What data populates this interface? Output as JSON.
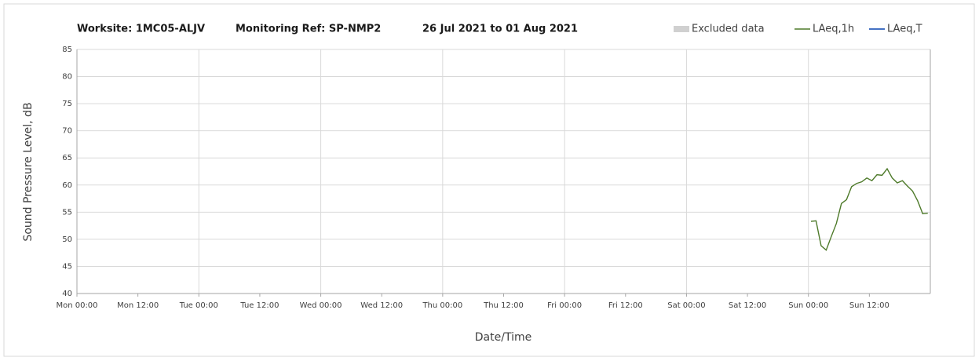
{
  "chart_data": {
    "type": "line",
    "title": [
      "Worksite: 1MC05-ALJV",
      "Monitoring Ref: SP-NMP2",
      "26 Jul 2021 to 01 Aug 2021"
    ],
    "x_label": "Date/Time",
    "y_label": "Sound Pressure Level, dB",
    "x": [
      144.5,
      145.5,
      146.5,
      147.5,
      148.5,
      149.5,
      150.5,
      151.5,
      152.5,
      153.5,
      154.5,
      155.5,
      156.5,
      157.5,
      158.5,
      159.5,
      160.5,
      161.5,
      162.5,
      163.5,
      164.5,
      165.5,
      166.5,
      167.5
    ],
    "series": [
      {
        "name": "Excluded data",
        "color": "#d0d0d0",
        "values": [
          null,
          null,
          null,
          null,
          null,
          null,
          null,
          null,
          null,
          null,
          null,
          null,
          null,
          null,
          null,
          null,
          null,
          null,
          null,
          null,
          null,
          null,
          null,
          null
        ]
      },
      {
        "name": "LAeq,1h",
        "color": "#4e7a2a",
        "values": [
          53.3,
          53.4,
          48.8,
          48.0,
          50.5,
          52.9,
          56.6,
          57.3,
          59.7,
          60.3,
          60.6,
          61.3,
          60.8,
          61.9,
          61.8,
          63.0,
          61.3,
          60.4,
          60.8,
          59.8,
          58.9,
          57.1,
          54.7,
          54.8
        ]
      },
      {
        "name": "LAeq,T",
        "color": "#4472c4",
        "values": [
          null,
          null,
          null,
          null,
          null,
          null,
          null,
          null,
          null,
          null,
          null,
          null,
          null,
          null,
          null,
          null,
          null,
          null,
          null,
          null,
          null,
          null,
          null,
          null
        ]
      }
    ],
    "xlim": [
      0,
      168
    ],
    "xticks": [
      {
        "value": 0,
        "label": "Mon 00:00"
      },
      {
        "value": 12,
        "label": "Mon 12:00"
      },
      {
        "value": 24,
        "label": "Tue 00:00"
      },
      {
        "value": 36,
        "label": "Tue 12:00"
      },
      {
        "value": 48,
        "label": "Wed 00:00"
      },
      {
        "value": 60,
        "label": "Wed 12:00"
      },
      {
        "value": 72,
        "label": "Thu 00:00"
      },
      {
        "value": 84,
        "label": "Thu 12:00"
      },
      {
        "value": 96,
        "label": "Fri 00:00"
      },
      {
        "value": 108,
        "label": "Fri 12:00"
      },
      {
        "value": 120,
        "label": "Sat 00:00"
      },
      {
        "value": 132,
        "label": "Sat 12:00"
      },
      {
        "value": 144,
        "label": "Sun 00:00"
      },
      {
        "value": 156,
        "label": "Sun 12:00"
      }
    ],
    "ylim": [
      40,
      85
    ],
    "yticks": [
      40,
      45,
      50,
      55,
      60,
      65,
      70,
      75,
      80,
      85
    ],
    "grid": true
  }
}
